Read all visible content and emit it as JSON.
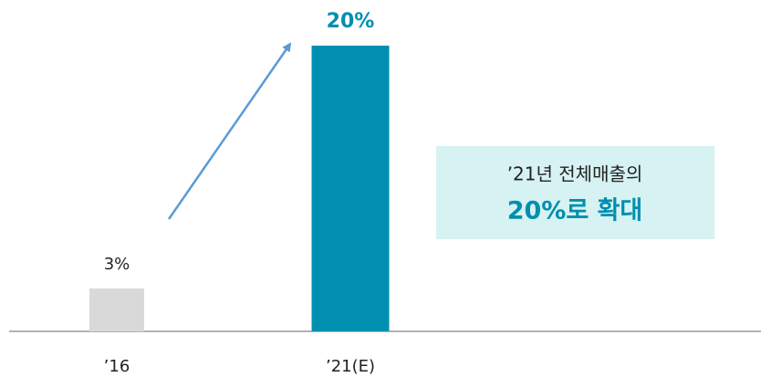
{
  "chart_data": {
    "type": "bar",
    "categories": [
      "’16",
      "’21(E)"
    ],
    "values": [
      3,
      20
    ],
    "value_labels": [
      "3%",
      "20%"
    ],
    "colors": [
      "#d9d9d9",
      "#008fb0"
    ],
    "ylim": [
      0,
      20
    ],
    "annotation": {
      "line1": "’21년 전체매출의",
      "line2": "20%로 확대"
    }
  }
}
